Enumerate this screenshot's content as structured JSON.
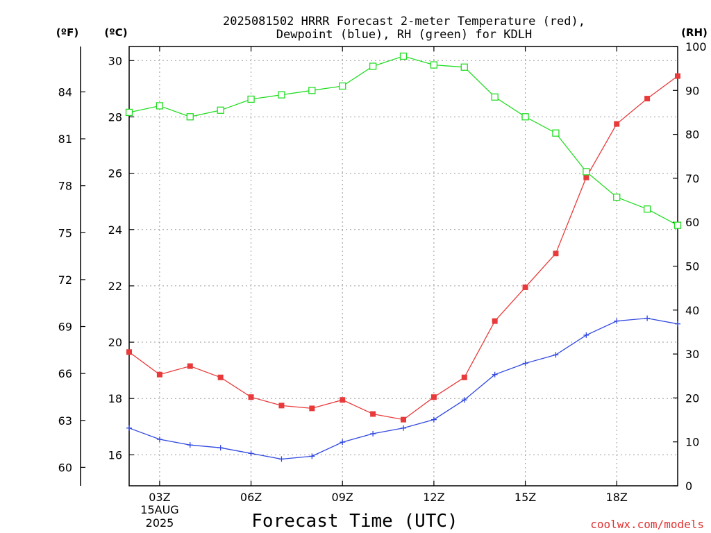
{
  "header": {
    "title_line1": "2025081502 HRRR Forecast 2-meter Temperature (red),",
    "title_line2": "Dewpoint (blue), RH (green) for KDLH"
  },
  "units": {
    "f": "(ºF)",
    "c": "(ºC)",
    "rh": "(RH)"
  },
  "footer": {
    "xlabel": "Forecast Time (UTC)",
    "date_day": "15AUG",
    "date_year": "2025",
    "credit": "coolwx.com/models"
  },
  "colors": {
    "temperature": "#e83a3a",
    "dewpoint": "#3048e0",
    "rh": "#22dd22"
  },
  "chart_data": {
    "type": "line",
    "x": [
      2,
      3,
      4,
      5,
      6,
      7,
      8,
      9,
      10,
      11,
      12,
      13,
      14,
      15,
      16,
      17,
      18,
      19,
      20
    ],
    "xlim": [
      2,
      20
    ],
    "x_ticks": [
      {
        "value": 3,
        "label": "03Z"
      },
      {
        "value": 6,
        "label": "06Z"
      },
      {
        "value": 9,
        "label": "09Z"
      },
      {
        "value": 12,
        "label": "12Z"
      },
      {
        "value": 15,
        "label": "15Z"
      },
      {
        "value": 18,
        "label": "18Z"
      }
    ],
    "ylim_c": [
      14.9,
      30.5
    ],
    "y_ticks_c": [
      16,
      18,
      20,
      22,
      24,
      26,
      28,
      30
    ],
    "y_ticks_f": [
      60,
      63,
      66,
      69,
      72,
      75,
      78,
      81,
      84
    ],
    "ylim_rh": [
      0,
      100
    ],
    "y_ticks_rh": [
      0,
      10,
      20,
      30,
      40,
      50,
      60,
      70,
      80,
      90,
      100
    ],
    "series": [
      {
        "name": "Temperature",
        "axis": "c",
        "marker": "filled-square",
        "values": [
          19.65,
          18.85,
          19.15,
          18.75,
          18.05,
          17.75,
          17.65,
          17.95,
          17.45,
          17.25,
          18.05,
          18.75,
          20.75,
          21.95,
          23.15,
          25.85,
          27.75,
          28.65,
          29.45
        ]
      },
      {
        "name": "Dewpoint",
        "axis": "c",
        "marker": "plus",
        "values": [
          16.95,
          16.55,
          16.35,
          16.25,
          16.05,
          15.85,
          15.95,
          16.45,
          16.75,
          16.95,
          17.25,
          17.95,
          18.85,
          19.25,
          19.55,
          20.25,
          20.75,
          20.85,
          20.65
        ]
      },
      {
        "name": "RH",
        "axis": "rh",
        "marker": "open-square",
        "values": [
          85,
          86.5,
          84,
          85.5,
          88,
          89,
          90,
          91,
          95.5,
          97.8,
          95.8,
          95.3,
          88.5,
          84,
          80.3,
          71.5,
          65.7,
          63,
          59.3
        ]
      }
    ]
  }
}
